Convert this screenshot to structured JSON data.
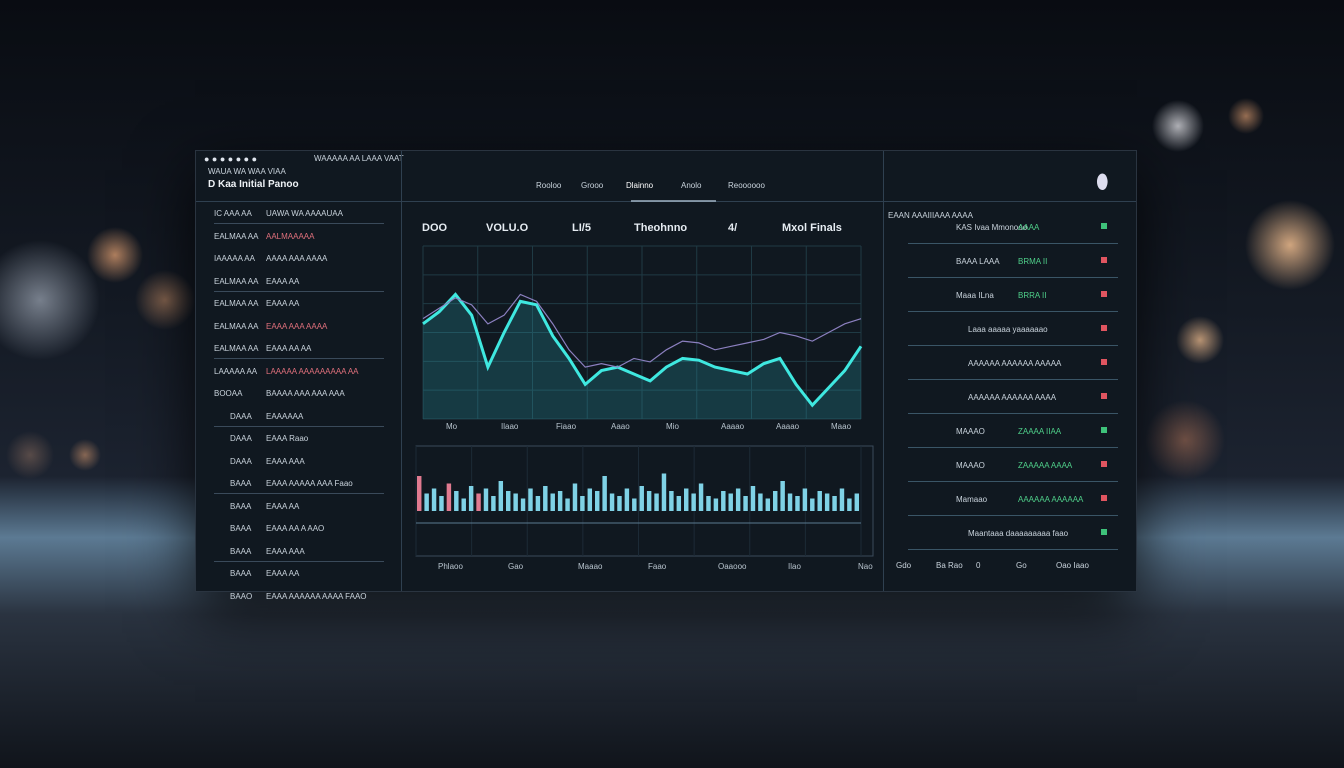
{
  "header": {
    "top_line": "WAUA WA WAA VIAA",
    "top_right": "WAAAAA AA LAAA VAAT",
    "title": "D Kaa Initial Panoo"
  },
  "nav": {
    "items": [
      "Rooloo",
      "Grooo",
      "Dlainno",
      "Anolo",
      "Reoooooo"
    ]
  },
  "left_list": {
    "rows": [
      {
        "label": "IC AAA AA",
        "value": "UAWA WA AAAAUAA",
        "tone": "plain"
      },
      {
        "label": "EALMAA AA",
        "value": "AALMAAAAA",
        "tone": "red"
      },
      {
        "label": "IAAAAA AA",
        "value": "AAAA AAA AAAA",
        "tone": "plain"
      },
      {
        "label": "EALMAA AA",
        "value": "EAAA AA",
        "tone": "plain"
      },
      {
        "label": "EALMAA AA",
        "value": "EAAA AA",
        "tone": "plain"
      },
      {
        "label": "EALMAA AA",
        "value": "EAAA AAA AAAA",
        "tone": "red"
      },
      {
        "label": "EALMAA AA",
        "value": "EAAA AA AA",
        "tone": "plain"
      },
      {
        "label": "LAAAAA AA",
        "value": "LAAAAA AAAAAAAAA AA",
        "tone": "red"
      },
      {
        "label": "BOOAA",
        "value": "BAAAA AAA AAA AAA",
        "tone": "plain"
      },
      {
        "label": "DAAA",
        "value": "EAAAAAA",
        "tone": "plain"
      },
      {
        "label": "DAAA",
        "value": "EAAA Raao",
        "tone": "plain"
      },
      {
        "label": "DAAA",
        "value": "EAAA AAA",
        "tone": "plain"
      },
      {
        "label": "BAAA",
        "value": "EAAA AAAAA AAA Faao",
        "tone": "plain"
      },
      {
        "label": "BAAA",
        "value": "EAAA AA",
        "tone": "plain"
      },
      {
        "label": "BAAA",
        "value": "EAAA AA A AAO",
        "tone": "plain"
      },
      {
        "label": "BAAA",
        "value": "EAAA AAA",
        "tone": "plain"
      },
      {
        "label": "BAAA",
        "value": "EAAA AA",
        "tone": "plain"
      },
      {
        "label": "BAAO",
        "value": "EAAA AAAAAA AAAA FAAO",
        "tone": "plain"
      }
    ]
  },
  "main_chart": {
    "type": "line",
    "labels": [
      "DOO",
      "VOLU.O",
      "LI/5",
      "Theohnno",
      "4/",
      "Mxol Finals"
    ],
    "ylim": [
      0,
      100
    ],
    "series": [
      {
        "color": "#3fe8e0",
        "values": [
          55,
          62,
          72,
          60,
          30,
          50,
          68,
          66,
          48,
          35,
          20,
          28,
          30,
          26,
          22,
          30,
          35,
          34,
          30,
          28,
          26,
          32,
          35,
          20,
          8,
          18,
          28,
          42
        ]
      },
      {
        "color": "#8c80c0",
        "values": [
          58,
          64,
          70,
          66,
          55,
          60,
          72,
          68,
          55,
          40,
          30,
          32,
          30,
          35,
          33,
          40,
          45,
          44,
          40,
          42,
          44,
          46,
          50,
          48,
          45,
          50,
          55,
          58
        ]
      }
    ],
    "x_labels": [
      "Mo",
      "Ilaao",
      "Fiaao",
      "Aaao",
      "Mio",
      "Aaaao",
      "Aaaao",
      "Maao"
    ]
  },
  "bar_chart": {
    "type": "bar",
    "color": "#7fd2e6",
    "accent_color": "#e07a90",
    "ylim": [
      0,
      100
    ],
    "values": [
      70,
      35,
      45,
      30,
      55,
      40,
      25,
      50,
      35,
      45,
      30,
      60,
      40,
      35,
      25,
      45,
      30,
      50,
      35,
      40,
      25,
      55,
      30,
      45,
      40,
      70,
      35,
      30,
      45,
      25,
      50,
      40,
      35,
      75,
      40,
      30,
      45,
      35,
      55,
      30,
      25,
      40,
      35,
      45,
      30,
      50,
      35,
      25,
      40,
      60,
      35,
      30,
      45,
      25,
      40,
      35,
      30,
      45,
      25,
      35
    ],
    "accent": [
      0,
      4,
      8
    ],
    "x_labels": [
      "Phlaoo",
      "Gao",
      "Maaao",
      "Faao",
      "Oaaooo",
      "Ilao",
      "Nao"
    ]
  },
  "right_list": {
    "title": "EAAN AAAIIIAAA AAAA",
    "rows": [
      {
        "label": "KAS Ivaa Mmonooo",
        "value": "AAAA",
        "trend": "up"
      },
      {
        "label": "BAAA LAAA",
        "value": "BRMA II",
        "trend": "down"
      },
      {
        "label": "Maaa ILna",
        "value": "BRRA II",
        "trend": "down"
      },
      {
        "label": "Laaa aaaaa yaaaaaao",
        "value": "",
        "trend": "down"
      },
      {
        "label": "AAAAAA AAAAAA AAAAA",
        "value": "",
        "trend": "down"
      },
      {
        "label": "AAAAAA AAAAAA AAAA",
        "value": "",
        "trend": "down"
      },
      {
        "label": "MAAAO",
        "value": "ZAAAA IIAA",
        "trend": "up"
      },
      {
        "label": "MAAAO",
        "value": "ZAAAAA AAAA",
        "trend": "down"
      },
      {
        "label": "Mamaao",
        "value": "AAAAAA AAAAAA",
        "trend": "down"
      },
      {
        "label": "Maantaaa daaaaaaaaa faao",
        "value": "",
        "trend": "up"
      }
    ],
    "footer": [
      "Gdo",
      "Ba Rao",
      "0",
      "Go",
      "Oao Iaao"
    ]
  }
}
